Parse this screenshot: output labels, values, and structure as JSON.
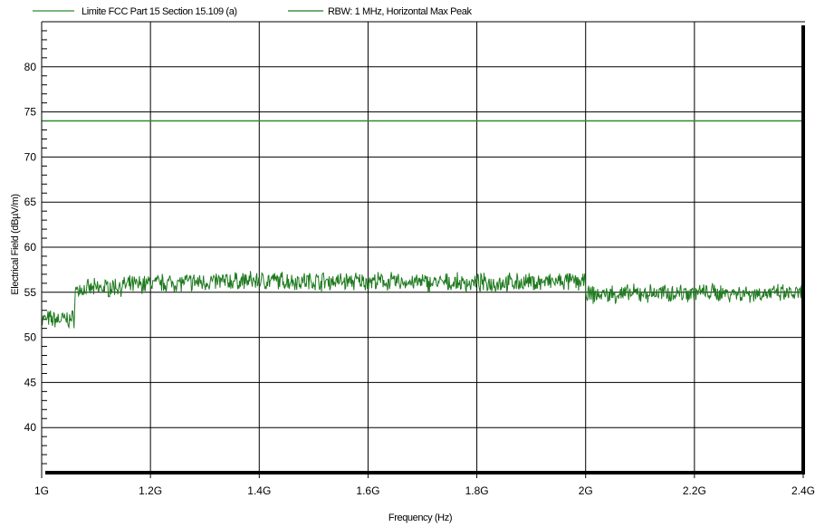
{
  "chart_data": {
    "type": "line",
    "xlabel": "Frequency (Hz)",
    "ylabel": "Electrical Field (dBµV/m)",
    "xlim": [
      1.0,
      2.4
    ],
    "ylim": [
      35,
      85
    ],
    "x_unit": "GHz",
    "grid": true,
    "legend": "top-left",
    "x_ticks": [
      {
        "value": 1.0,
        "label": "1G"
      },
      {
        "value": 1.2,
        "label": "1.2G"
      },
      {
        "value": 1.4,
        "label": "1.4G"
      },
      {
        "value": 1.6,
        "label": "1.6G"
      },
      {
        "value": 1.8,
        "label": "1.8G"
      },
      {
        "value": 2.0,
        "label": "2G"
      },
      {
        "value": 2.2,
        "label": "2.2G"
      },
      {
        "value": 2.4,
        "label": "2.4G"
      }
    ],
    "y_ticks": [
      {
        "value": 40,
        "label": "40"
      },
      {
        "value": 45,
        "label": "45"
      },
      {
        "value": 50,
        "label": "50"
      },
      {
        "value": 55,
        "label": "55"
      },
      {
        "value": 60,
        "label": "60"
      },
      {
        "value": 65,
        "label": "65"
      },
      {
        "value": 70,
        "label": "70"
      },
      {
        "value": 75,
        "label": "75"
      },
      {
        "value": 80,
        "label": "80"
      }
    ],
    "series": [
      {
        "name": "Limite FCC Part 15 Section 15.109 (a)",
        "color": "#2e8b2e",
        "x": [
          1.0,
          2.4
        ],
        "y": [
          74,
          74
        ]
      },
      {
        "name": "RBW: 1 MHz, Horizontal Max Peak",
        "color": "#1f7a1f",
        "x": [
          1.0,
          1.06,
          1.061,
          1.2,
          1.4,
          1.6,
          1.8,
          1.99,
          2.0,
          2.001,
          2.2,
          2.4
        ],
        "y": [
          52,
          52,
          55.2,
          56,
          56.3,
          56.2,
          56.0,
          56.2,
          56.0,
          54.7,
          55.0,
          54.8
        ]
      }
    ]
  }
}
